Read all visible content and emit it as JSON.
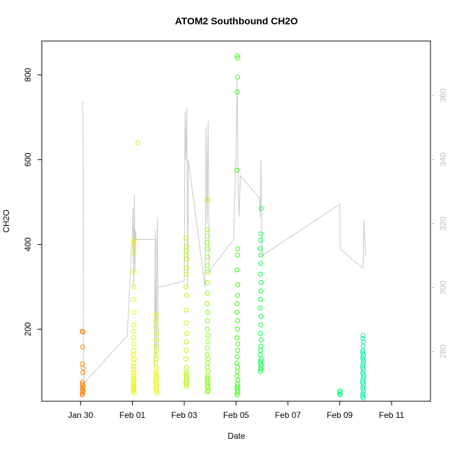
{
  "chart_data": {
    "type": "scatter",
    "title": "ATOM2 Southbound CH2O",
    "xlabel": "Date",
    "ylabel": "CH2O",
    "x_ticks": [
      "Jan 30",
      "Feb 01",
      "Feb 03",
      "Feb 05",
      "Feb 07",
      "Feb 09",
      "Feb 11"
    ],
    "x_tick_days": [
      30,
      32,
      34,
      36,
      38,
      40,
      42
    ],
    "xlim_days": [
      28.5,
      43.5
    ],
    "ylim": [
      30,
      880
    ],
    "y_ticks": [
      200,
      400,
      600,
      800
    ],
    "y2lim": [
      264.5,
      377
    ],
    "y2_ticks": [
      280,
      300,
      320,
      340,
      360
    ],
    "grid": false,
    "legend": "none",
    "colors": {
      "line": "#c8c8c8",
      "frame": "#000000",
      "y2_axis": "#bdbdbd"
    },
    "clusters": [
      {
        "day": 30.08,
        "color": "#ff7f00",
        "values": [
          45,
          48,
          52,
          55,
          58,
          62,
          66,
          70,
          75,
          98,
          108,
          118,
          158,
          193,
          195
        ]
      },
      {
        "day": 32.05,
        "color": "#e8f200",
        "values": [
          50,
          55,
          58,
          62,
          66,
          70,
          75,
          80,
          85,
          92,
          98,
          105,
          112,
          120,
          130,
          140,
          150,
          165,
          180,
          195,
          210,
          240,
          270,
          300,
          335,
          380,
          395,
          405,
          410
        ]
      },
      {
        "day": 32.2,
        "color": "#e8f200",
        "values": [
          640
        ]
      },
      {
        "day": 32.92,
        "color": "#e0f500",
        "values": [
          50,
          55,
          60,
          65,
          70,
          75,
          80,
          85,
          90,
          95,
          100,
          110,
          120,
          130,
          140,
          150,
          160,
          175,
          190,
          205,
          220,
          235
        ]
      },
      {
        "day": 34.08,
        "color": "#b5f500",
        "values": [
          65,
          70,
          75,
          80,
          85,
          90,
          95,
          100,
          110,
          130,
          150,
          170,
          190,
          215,
          245,
          280,
          300,
          330,
          345,
          365,
          375,
          385,
          395,
          415
        ]
      },
      {
        "day": 34.9,
        "color": "#80ff00",
        "values": [
          52,
          55,
          60,
          65,
          70,
          75,
          80,
          85,
          90,
          100,
          110,
          120,
          130,
          140,
          155,
          170,
          185,
          200,
          220,
          240,
          260,
          285,
          310,
          335,
          350,
          370,
          390,
          405,
          420,
          435,
          505
        ]
      },
      {
        "day": 36.05,
        "color": "#2dff00",
        "values": [
          45,
          50,
          55,
          60,
          65,
          70,
          80,
          90,
          100,
          110,
          120,
          135,
          150,
          165,
          180,
          200,
          220,
          240,
          260,
          280,
          305,
          340,
          375,
          390,
          575,
          760,
          795,
          840,
          845
        ]
      },
      {
        "day": 36.95,
        "color": "#00ff40",
        "values": [
          100,
          105,
          110,
          115,
          120,
          125,
          130,
          140,
          150,
          160,
          175,
          190,
          210,
          230,
          250,
          270,
          290,
          310,
          330,
          355,
          375,
          390,
          410,
          425,
          485
        ]
      },
      {
        "day": 40.0,
        "color": "#00ff80",
        "values": [
          45,
          48,
          52,
          55
        ]
      },
      {
        "day": 40.9,
        "color": "#00f0a0",
        "values": [
          38,
          42,
          46,
          50,
          55,
          60,
          65,
          70,
          75,
          80,
          85,
          90,
          95,
          100,
          105,
          110,
          115,
          120,
          125,
          130,
          135,
          140,
          145,
          150,
          160,
          170,
          178,
          185
        ]
      }
    ],
    "line_series": {
      "name": "",
      "y2_points": [
        [
          30.08,
          358
        ],
        [
          30.1,
          345
        ],
        [
          30.12,
          270
        ],
        [
          31.8,
          285
        ],
        [
          32.0,
          317
        ],
        [
          32.02,
          325
        ],
        [
          32.05,
          300
        ],
        [
          32.08,
          329
        ],
        [
          32.1,
          305
        ],
        [
          32.12,
          318
        ],
        [
          32.15,
          315
        ],
        [
          32.9,
          315
        ],
        [
          32.85,
          275
        ],
        [
          32.88,
          318
        ],
        [
          32.92,
          278
        ],
        [
          32.96,
          322
        ],
        [
          33.0,
          280
        ],
        [
          32.98,
          300
        ],
        [
          34.0,
          302
        ],
        [
          34.03,
          355
        ],
        [
          34.06,
          340
        ],
        [
          34.1,
          356
        ],
        [
          34.13,
          300
        ],
        [
          34.16,
          340
        ],
        [
          34.8,
          300
        ],
        [
          34.84,
          350
        ],
        [
          34.88,
          320
        ],
        [
          34.92,
          352
        ],
        [
          34.96,
          305
        ],
        [
          35.9,
          315
        ],
        [
          36.0,
          343
        ],
        [
          36.04,
          365
        ],
        [
          36.08,
          330
        ],
        [
          36.12,
          322
        ],
        [
          36.16,
          335
        ],
        [
          36.9,
          328
        ],
        [
          36.93,
          322
        ],
        [
          36.96,
          340
        ],
        [
          37.0,
          310
        ],
        [
          40.0,
          326
        ],
        [
          40.02,
          312
        ],
        [
          40.9,
          306
        ],
        [
          40.93,
          321
        ],
        [
          40.95,
          318
        ],
        [
          41.0,
          310
        ]
      ]
    }
  }
}
